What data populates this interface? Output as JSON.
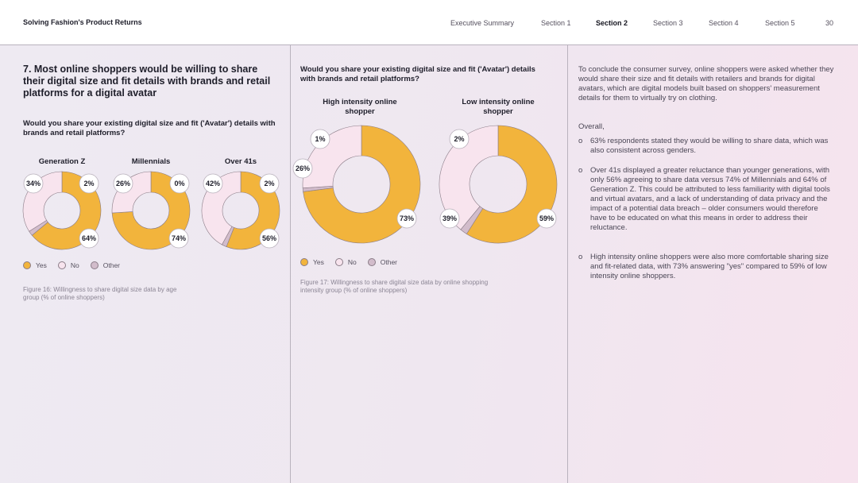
{
  "header": {
    "brand": "Solving Fashion's Product Returns",
    "nav": [
      "Executive Summary",
      "Section 1",
      "Section 2",
      "Section 3",
      "Section 4",
      "Section 5"
    ],
    "active": "Section 2",
    "page": "30"
  },
  "left": {
    "heading": "7. Most online shoppers would be willing to share their digital size and fit details with brands and retail platforms for a digital avatar",
    "question": "Would you share your existing digital size and fit ('Avatar') details with brands and retail platforms?",
    "caption": "Figure 16: Willingness to share digital size data by age group (% of online shoppers)"
  },
  "middle": {
    "question": "Would you share your existing digital size and fit ('Avatar') details with brands and retail platforms?",
    "caption": "Figure 17: Willingness to share digital size data by online shopping intensity group (% of online shoppers)"
  },
  "legend": [
    "Yes",
    "No",
    "Other"
  ],
  "colors": {
    "yes": "#f2b43c",
    "no": "#f8e4ee",
    "other": "#d2bccb",
    "stroke": "#8a7c87"
  },
  "chart_data": [
    {
      "type": "pie",
      "variant": "donut",
      "series": [
        {
          "name": "Generation Z",
          "values": [
            64,
            34,
            2
          ],
          "labels": [
            "64%",
            "34%",
            "2%"
          ]
        },
        {
          "name": "Millennials",
          "values": [
            74,
            26,
            0
          ],
          "labels": [
            "74%",
            "26%",
            "0%"
          ]
        },
        {
          "name": "Over 41s",
          "values": [
            56,
            42,
            2
          ],
          "labels": [
            "56%",
            "42%",
            "2%"
          ]
        }
      ],
      "categories": [
        "Yes",
        "No",
        "Other"
      ]
    },
    {
      "type": "pie",
      "variant": "donut",
      "series": [
        {
          "name": "High intensity online shopper",
          "values": [
            73,
            26,
            1
          ],
          "labels": [
            "73%",
            "26%",
            "1%"
          ]
        },
        {
          "name": "Low intensity online shopper",
          "values": [
            59,
            39,
            2
          ],
          "labels": [
            "59%",
            "39%",
            "2%"
          ]
        }
      ],
      "categories": [
        "Yes",
        "No",
        "Other"
      ]
    }
  ],
  "right": {
    "intro": "To conclude the consumer survey, online shoppers were asked whether they would share their size and fit details with retailers and brands for digital avatars, which are digital models built based on shoppers' measurement details for them to virtually try on clothing.",
    "overall": "Overall,",
    "bullet_mark": "o",
    "bullets": [
      "63% respondents stated they would be willing to share data, which was also consistent across genders.",
      "Over 41s displayed a greater reluctance than younger generations, with only 56% agreeing to share data versus 74% of Millennials and 64% of Generation Z. This could be attributed to less familiarity with digital tools and virtual avatars, and a lack of understanding of data privacy and the impact of a potential data breach – older consumers would therefore have to be educated on what this means in order to address their reluctance.",
      "High intensity online shoppers were also more comfortable sharing size and fit-related data, with 73% answering \"yes\" compared to 59% of low intensity online shoppers."
    ]
  }
}
